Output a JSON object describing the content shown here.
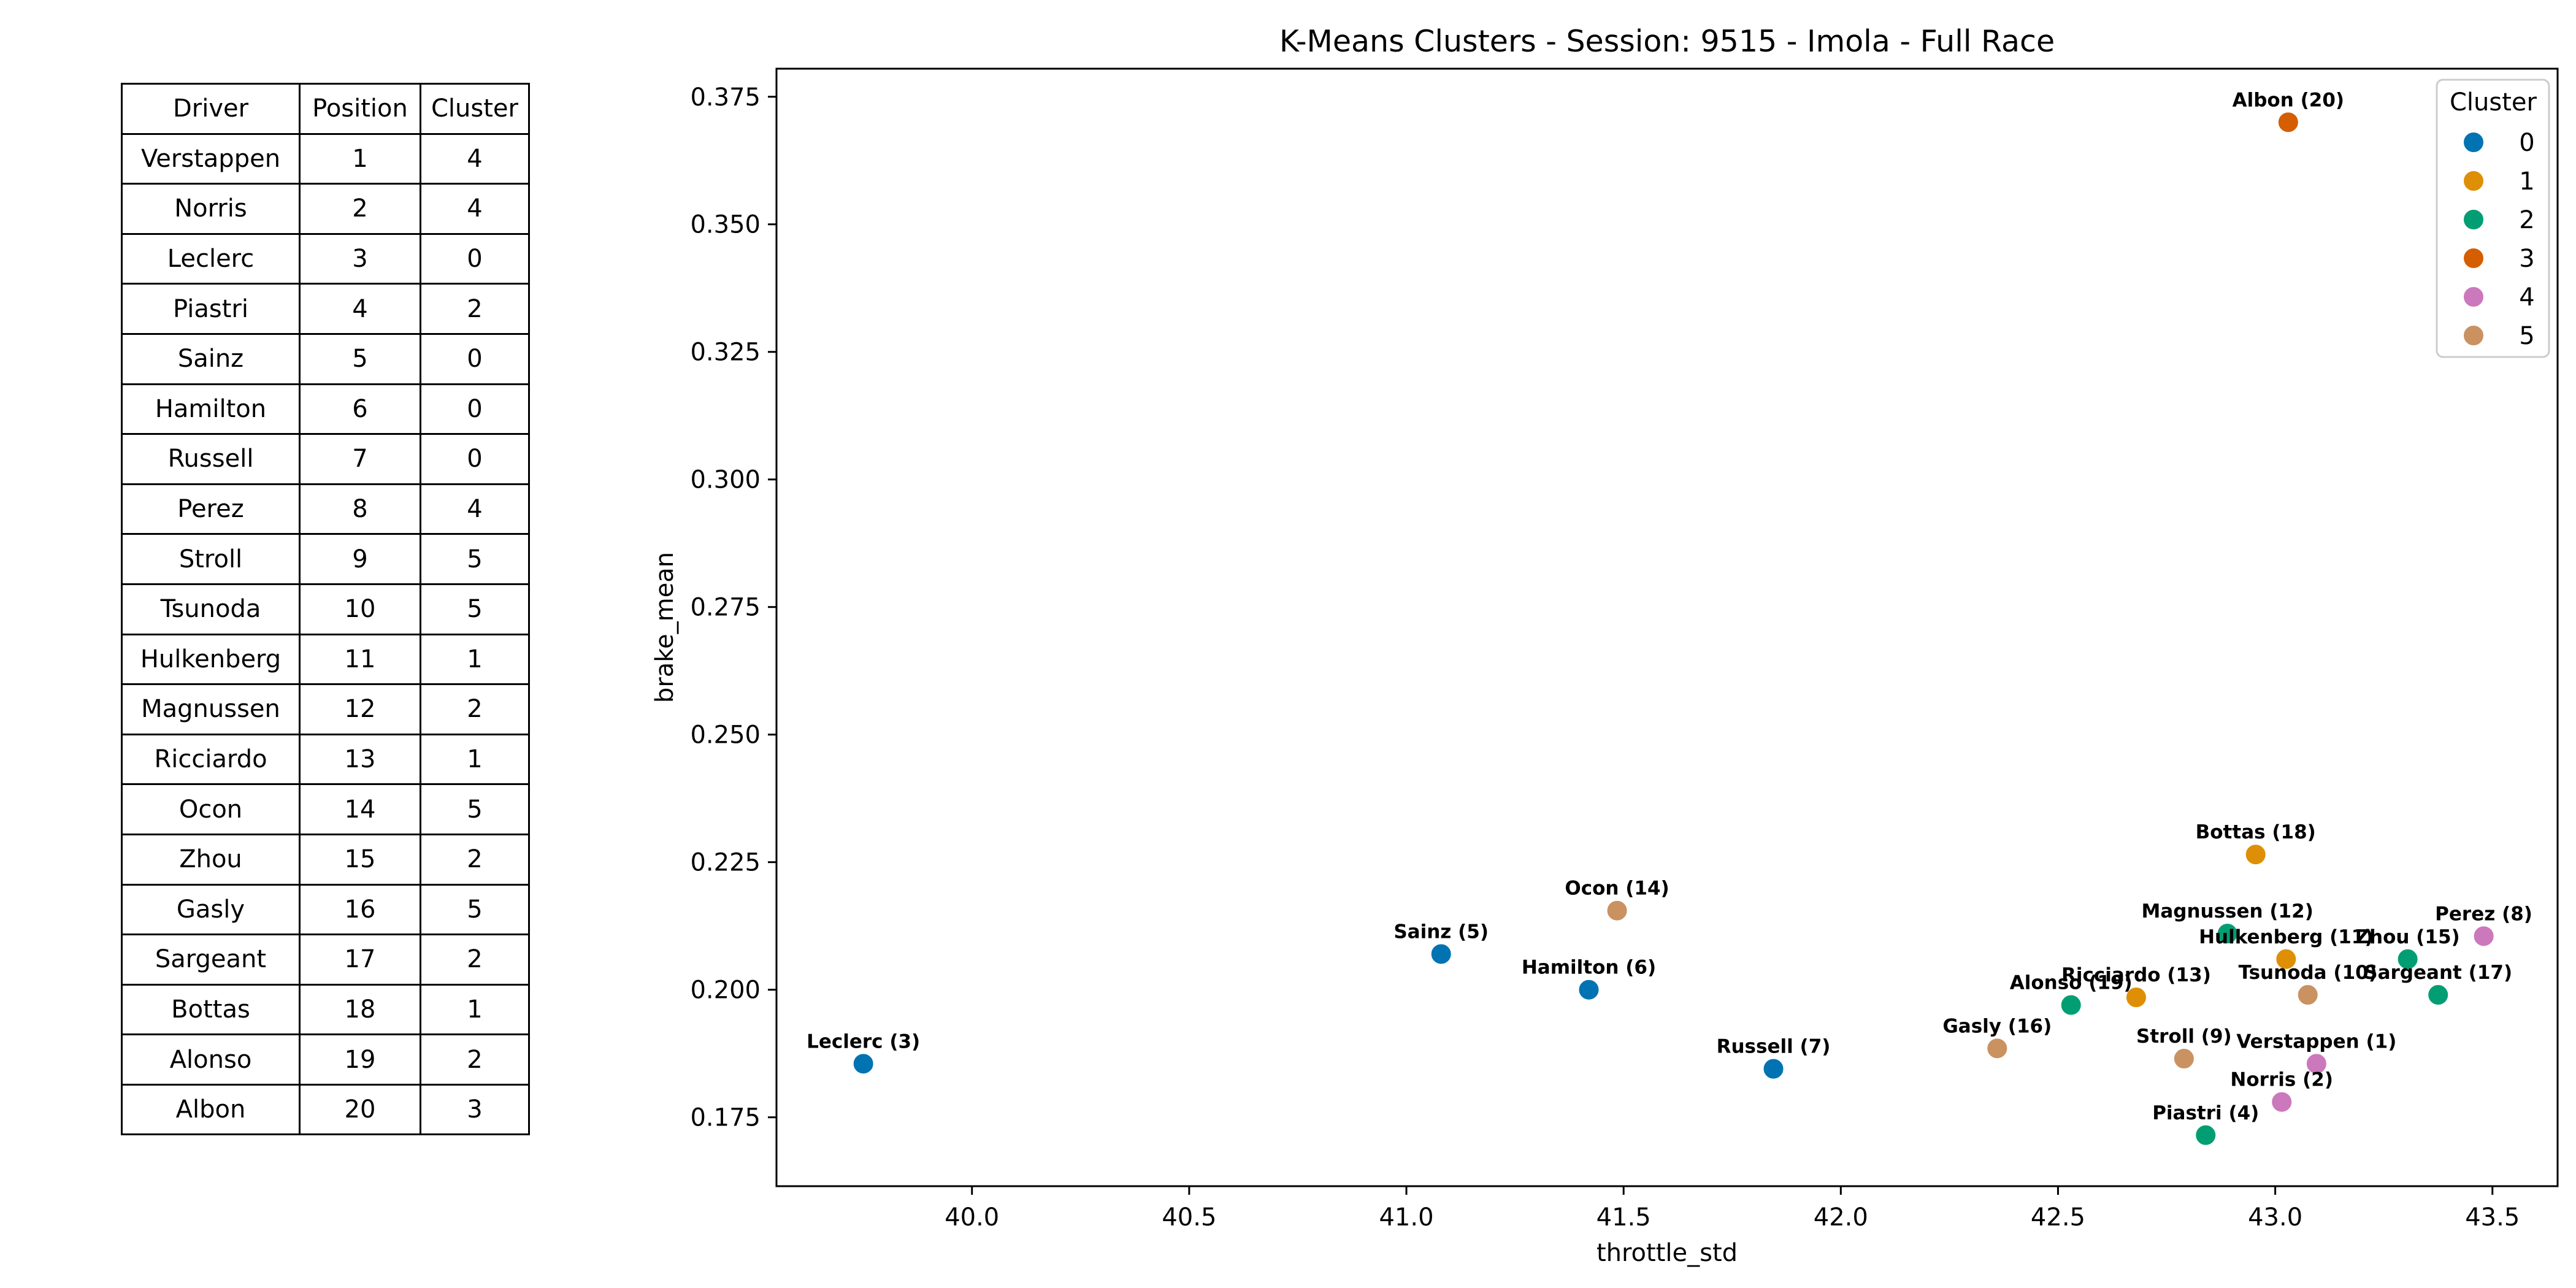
{
  "table": {
    "headers": [
      "Driver",
      "Position",
      "Cluster"
    ],
    "rows": [
      [
        "Verstappen",
        "1",
        "4"
      ],
      [
        "Norris",
        "2",
        "4"
      ],
      [
        "Leclerc",
        "3",
        "0"
      ],
      [
        "Piastri",
        "4",
        "2"
      ],
      [
        "Sainz",
        "5",
        "0"
      ],
      [
        "Hamilton",
        "6",
        "0"
      ],
      [
        "Russell",
        "7",
        "0"
      ],
      [
        "Perez",
        "8",
        "4"
      ],
      [
        "Stroll",
        "9",
        "5"
      ],
      [
        "Tsunoda",
        "10",
        "5"
      ],
      [
        "Hulkenberg",
        "11",
        "1"
      ],
      [
        "Magnussen",
        "12",
        "2"
      ],
      [
        "Ricciardo",
        "13",
        "1"
      ],
      [
        "Ocon",
        "14",
        "5"
      ],
      [
        "Zhou",
        "15",
        "2"
      ],
      [
        "Gasly",
        "16",
        "5"
      ],
      [
        "Sargeant",
        "17",
        "2"
      ],
      [
        "Bottas",
        "18",
        "1"
      ],
      [
        "Alonso",
        "19",
        "2"
      ],
      [
        "Albon",
        "20",
        "3"
      ]
    ]
  },
  "chart_data": {
    "type": "scatter",
    "title": "K-Means Clusters - Session: 9515 - Imola - Full Race",
    "xlabel": "throttle_std",
    "ylabel": "brake_mean",
    "xlim": [
      39.55,
      43.65
    ],
    "ylim": [
      0.1615,
      0.3805
    ],
    "xticks": [
      "40.0",
      "40.5",
      "41.0",
      "41.5",
      "42.0",
      "42.5",
      "43.0",
      "43.5"
    ],
    "xtick_values": [
      40.0,
      40.5,
      41.0,
      41.5,
      42.0,
      42.5,
      43.0,
      43.5
    ],
    "yticks": [
      "0.175",
      "0.200",
      "0.225",
      "0.250",
      "0.275",
      "0.300",
      "0.325",
      "0.350",
      "0.375"
    ],
    "ytick_values": [
      0.175,
      0.2,
      0.225,
      0.25,
      0.275,
      0.3,
      0.325,
      0.35,
      0.375
    ],
    "grid": false,
    "legend": {
      "title": "Cluster",
      "position": "top-right",
      "entries": [
        {
          "label": "0",
          "color": "#0173b2"
        },
        {
          "label": "1",
          "color": "#de8f05"
        },
        {
          "label": "2",
          "color": "#029e73"
        },
        {
          "label": "3",
          "color": "#d55e00"
        },
        {
          "label": "4",
          "color": "#cc78bc"
        },
        {
          "label": "5",
          "color": "#ca9161"
        }
      ]
    },
    "points": [
      {
        "label": "Leclerc (3)",
        "x": 39.75,
        "y": 0.1855,
        "cluster": 0
      },
      {
        "label": "Sainz (5)",
        "x": 41.08,
        "y": 0.207,
        "cluster": 0
      },
      {
        "label": "Hamilton (6)",
        "x": 41.42,
        "y": 0.2,
        "cluster": 0
      },
      {
        "label": "Russell (7)",
        "x": 41.845,
        "y": 0.1845,
        "cluster": 0
      },
      {
        "label": "Ocon (14)",
        "x": 41.485,
        "y": 0.2155,
        "cluster": 5
      },
      {
        "label": "Gasly (16)",
        "x": 42.36,
        "y": 0.1885,
        "cluster": 5
      },
      {
        "label": "Alonso (19)",
        "x": 42.53,
        "y": 0.197,
        "cluster": 2
      },
      {
        "label": "Ricciardo (13)",
        "x": 42.68,
        "y": 0.1985,
        "cluster": 1
      },
      {
        "label": "Stroll (9)",
        "x": 42.79,
        "y": 0.1865,
        "cluster": 5
      },
      {
        "label": "Piastri (4)",
        "x": 42.84,
        "y": 0.1715,
        "cluster": 2
      },
      {
        "label": "Magnussen (12)",
        "x": 42.89,
        "y": 0.211,
        "cluster": 2
      },
      {
        "label": "Bottas (18)",
        "x": 42.955,
        "y": 0.2265,
        "cluster": 1
      },
      {
        "label": "Norris (2)",
        "x": 43.015,
        "y": 0.178,
        "cluster": 4
      },
      {
        "label": "Hulkenberg (11)",
        "x": 43.025,
        "y": 0.206,
        "cluster": 1
      },
      {
        "label": "Albon (20)",
        "x": 43.03,
        "y": 0.37,
        "cluster": 3
      },
      {
        "label": "Tsunoda (10)",
        "x": 43.075,
        "y": 0.199,
        "cluster": 5
      },
      {
        "label": "Verstappen (1)",
        "x": 43.095,
        "y": 0.1855,
        "cluster": 4
      },
      {
        "label": "Zhou (15)",
        "x": 43.305,
        "y": 0.206,
        "cluster": 2
      },
      {
        "label": "Sargeant (17)",
        "x": 43.375,
        "y": 0.199,
        "cluster": 2
      },
      {
        "label": "Perez (8)",
        "x": 43.48,
        "y": 0.2105,
        "cluster": 4
      }
    ]
  }
}
